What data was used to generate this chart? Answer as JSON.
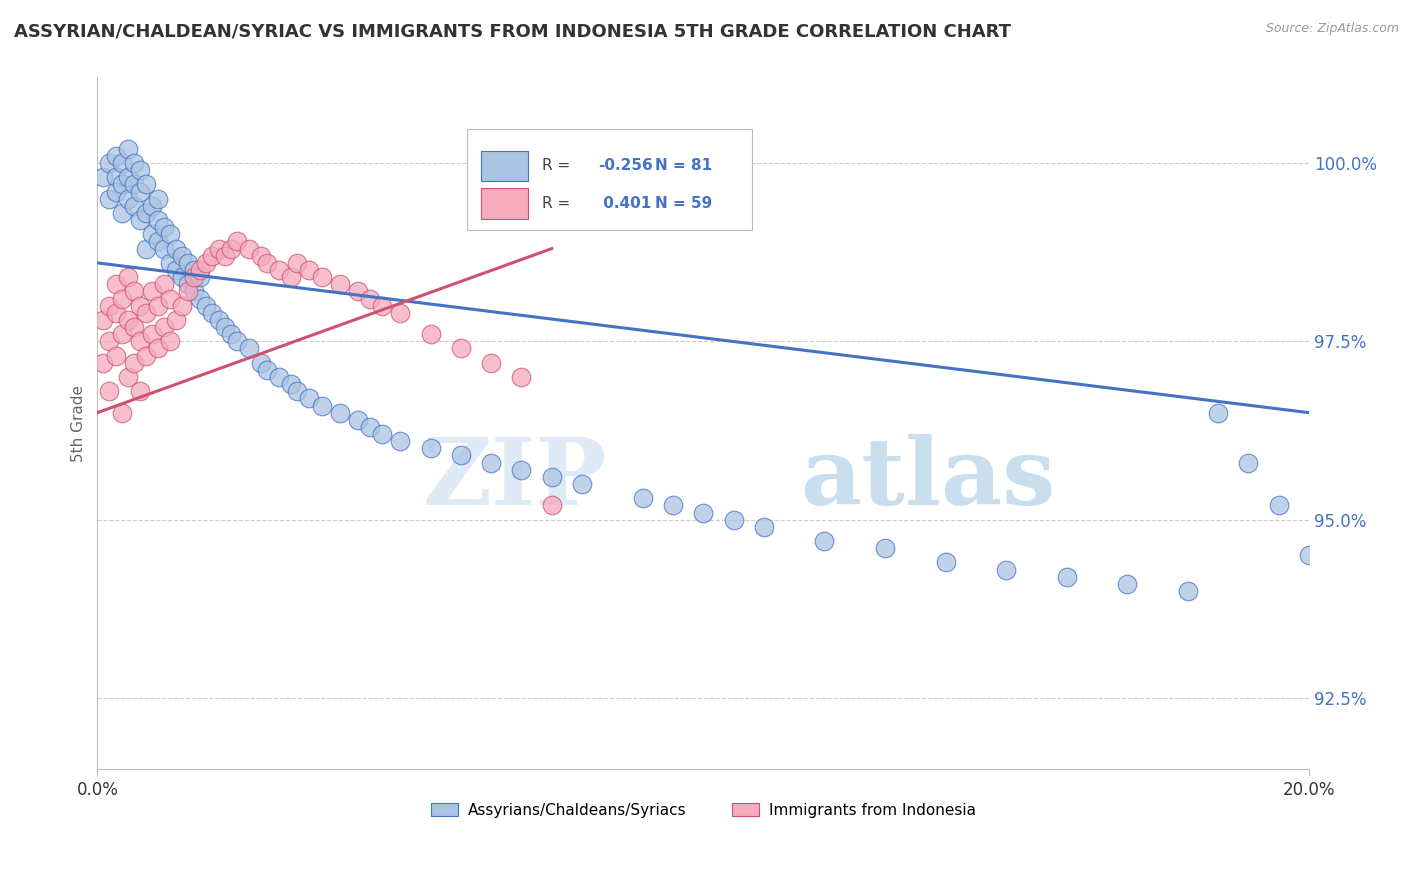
{
  "title": "ASSYRIAN/CHALDEAN/SYRIAC VS IMMIGRANTS FROM INDONESIA 5TH GRADE CORRELATION CHART",
  "source": "Source: ZipAtlas.com",
  "xlabel_blue": "Assyrians/Chaldeans/Syriacs",
  "xlabel_pink": "Immigrants from Indonesia",
  "ylabel": "5th Grade",
  "xmin": 0.0,
  "xmax": 0.2,
  "ymin": 91.5,
  "ymax": 101.2,
  "yticks": [
    92.5,
    95.0,
    97.5,
    100.0
  ],
  "ytick_labels": [
    "92.5%",
    "95.0%",
    "97.5%",
    "100.0%"
  ],
  "blue_R": -0.256,
  "blue_N": 81,
  "pink_R": 0.401,
  "pink_N": 59,
  "blue_color": "#aac4e2",
  "pink_color": "#f5aabe",
  "blue_line_color": "#4472c4",
  "pink_line_color": "#d05070",
  "watermark_zip": "ZIP",
  "watermark_atlas": "atlas",
  "background_color": "#ffffff",
  "grid_color": "#cccccc",
  "blue_scatter_x": [
    0.001,
    0.002,
    0.002,
    0.003,
    0.003,
    0.003,
    0.004,
    0.004,
    0.004,
    0.005,
    0.005,
    0.005,
    0.006,
    0.006,
    0.006,
    0.007,
    0.007,
    0.007,
    0.008,
    0.008,
    0.008,
    0.009,
    0.009,
    0.01,
    0.01,
    0.01,
    0.011,
    0.011,
    0.012,
    0.012,
    0.013,
    0.013,
    0.014,
    0.014,
    0.015,
    0.015,
    0.016,
    0.016,
    0.017,
    0.017,
    0.018,
    0.019,
    0.02,
    0.021,
    0.022,
    0.023,
    0.025,
    0.027,
    0.028,
    0.03,
    0.032,
    0.033,
    0.035,
    0.037,
    0.04,
    0.043,
    0.045,
    0.047,
    0.05,
    0.055,
    0.06,
    0.065,
    0.07,
    0.075,
    0.08,
    0.09,
    0.095,
    0.1,
    0.105,
    0.11,
    0.12,
    0.13,
    0.14,
    0.15,
    0.16,
    0.17,
    0.18,
    0.185,
    0.19,
    0.195,
    0.2
  ],
  "blue_scatter_y": [
    99.8,
    99.5,
    100.0,
    99.8,
    99.6,
    100.1,
    99.7,
    99.3,
    100.0,
    99.5,
    99.8,
    100.2,
    99.4,
    99.7,
    100.0,
    99.2,
    99.6,
    99.9,
    99.3,
    99.7,
    98.8,
    99.0,
    99.4,
    98.9,
    99.2,
    99.5,
    98.8,
    99.1,
    98.6,
    99.0,
    98.5,
    98.8,
    98.4,
    98.7,
    98.3,
    98.6,
    98.2,
    98.5,
    98.1,
    98.4,
    98.0,
    97.9,
    97.8,
    97.7,
    97.6,
    97.5,
    97.4,
    97.2,
    97.1,
    97.0,
    96.9,
    96.8,
    96.7,
    96.6,
    96.5,
    96.4,
    96.3,
    96.2,
    96.1,
    96.0,
    95.9,
    95.8,
    95.7,
    95.6,
    95.5,
    95.3,
    95.2,
    95.1,
    95.0,
    94.9,
    94.7,
    94.6,
    94.4,
    94.3,
    94.2,
    94.1,
    94.0,
    96.5,
    95.8,
    95.2,
    94.5
  ],
  "pink_scatter_x": [
    0.001,
    0.001,
    0.002,
    0.002,
    0.002,
    0.003,
    0.003,
    0.003,
    0.004,
    0.004,
    0.004,
    0.005,
    0.005,
    0.005,
    0.006,
    0.006,
    0.006,
    0.007,
    0.007,
    0.007,
    0.008,
    0.008,
    0.009,
    0.009,
    0.01,
    0.01,
    0.011,
    0.011,
    0.012,
    0.012,
    0.013,
    0.014,
    0.015,
    0.016,
    0.017,
    0.018,
    0.019,
    0.02,
    0.021,
    0.022,
    0.023,
    0.025,
    0.027,
    0.028,
    0.03,
    0.032,
    0.033,
    0.035,
    0.037,
    0.04,
    0.043,
    0.045,
    0.047,
    0.05,
    0.055,
    0.06,
    0.065,
    0.07,
    0.075
  ],
  "pink_scatter_y": [
    97.2,
    97.8,
    97.5,
    98.0,
    96.8,
    97.3,
    97.9,
    98.3,
    97.6,
    98.1,
    96.5,
    97.0,
    97.8,
    98.4,
    97.2,
    97.7,
    98.2,
    97.5,
    98.0,
    96.8,
    97.3,
    97.9,
    97.6,
    98.2,
    97.4,
    98.0,
    97.7,
    98.3,
    97.5,
    98.1,
    97.8,
    98.0,
    98.2,
    98.4,
    98.5,
    98.6,
    98.7,
    98.8,
    98.7,
    98.8,
    98.9,
    98.8,
    98.7,
    98.6,
    98.5,
    98.4,
    98.6,
    98.5,
    98.4,
    98.3,
    98.2,
    98.1,
    98.0,
    97.9,
    97.6,
    97.4,
    97.2,
    97.0,
    95.2
  ],
  "blue_trend_x": [
    0.0,
    0.2
  ],
  "blue_trend_y": [
    98.6,
    96.5
  ],
  "pink_trend_x": [
    0.0,
    0.075
  ],
  "pink_trend_y": [
    96.5,
    98.8
  ]
}
